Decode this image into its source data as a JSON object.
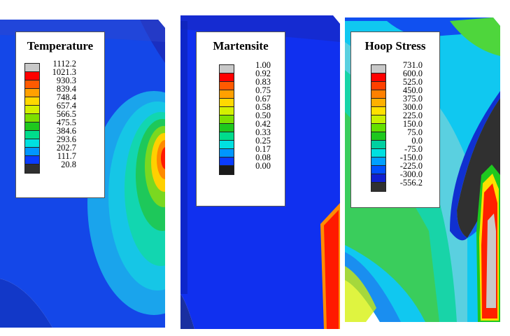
{
  "panels": [
    {
      "title": "Temperature",
      "labels": [
        "1112.2",
        "1021.3",
        "930.3",
        "839.4",
        "748.4",
        "657.4",
        "566.5",
        "475.5",
        "384.6",
        "293.6",
        "202.7",
        "111.7",
        "20.8"
      ],
      "colors": [
        "#c8c8c8",
        "#ff0000",
        "#ff5a00",
        "#ffa000",
        "#ffd800",
        "#d4f000",
        "#7ce000",
        "#1ec81e",
        "#00dc8c",
        "#00e0e0",
        "#0096ff",
        "#0a3cff",
        "#303030"
      ]
    },
    {
      "title": "Martensite",
      "labels": [
        "1.00",
        "0.92",
        "0.83",
        "0.75",
        "0.67",
        "0.58",
        "0.50",
        "0.42",
        "0.33",
        "0.25",
        "0.17",
        "0.08",
        "0.00"
      ],
      "colors": [
        "#c8c8c8",
        "#ff0000",
        "#ff5a00",
        "#ffa000",
        "#ffd800",
        "#d4f000",
        "#7ce000",
        "#1ec81e",
        "#00dc8c",
        "#00e0e0",
        "#0096ff",
        "#0a3cff",
        "#1a1a1a"
      ]
    },
    {
      "title": "Hoop Stress",
      "labels": [
        "731.0",
        "600.0",
        "525.0",
        "450.0",
        "375.0",
        "300.0",
        "225.0",
        "150.0",
        "75.0",
        "0.0",
        "-75.0",
        "-150.0",
        "-225.0",
        "-300.0",
        "-556.2"
      ],
      "colors": [
        "#c8c8c8",
        "#ff0000",
        "#ff4000",
        "#ff8000",
        "#ffb000",
        "#ffe000",
        "#c8f000",
        "#64e000",
        "#1ec81e",
        "#00d0a0",
        "#00e0e0",
        "#00a0ff",
        "#0050ff",
        "#1020d0",
        "#303030"
      ]
    }
  ]
}
